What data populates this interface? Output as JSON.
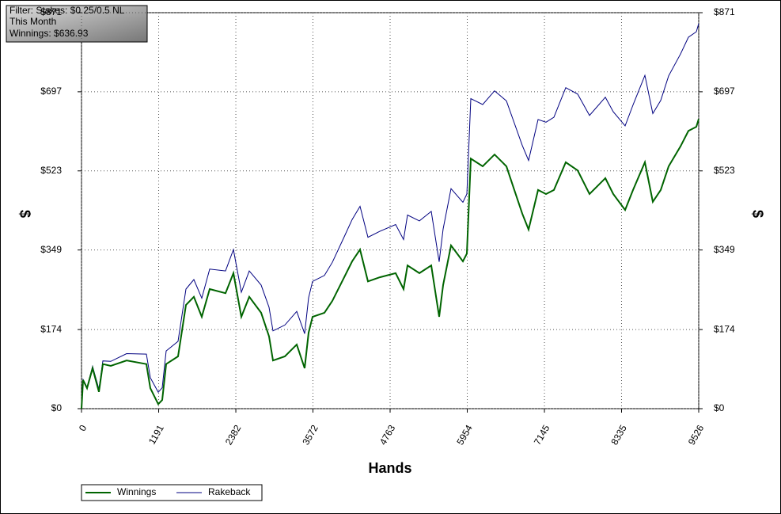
{
  "chart_data": {
    "type": "line",
    "annotations": [
      "Filter: Stakes: $0.25/0.5 NL",
      "This Month",
      "Winnings: $636.93"
    ],
    "xlabel": "Hands",
    "ylabel": "$",
    "y2label": "$",
    "x": [
      0,
      24,
      85,
      171,
      269,
      330,
      452,
      696,
      1001,
      1063,
      1185,
      1246,
      1307,
      1490,
      1612,
      1734,
      1856,
      1978,
      2223,
      2345,
      2467,
      2589,
      2772,
      2894,
      2956,
      3139,
      3322,
      3444,
      3505,
      3566,
      3749,
      3872,
      4055,
      4177,
      4299,
      4421,
      4604,
      4849,
      4971,
      5032,
      5215,
      5398,
      5520,
      5581,
      5703,
      5887,
      5948,
      6009,
      6192,
      6375,
      6558,
      6680,
      6803,
      6900,
      7047,
      7169,
      7291,
      7474,
      7657,
      7841,
      8085,
      8207,
      8390,
      8512,
      8696,
      8818,
      8940,
      9062,
      9245,
      9367,
      9489,
      9526
    ],
    "series": [
      {
        "name": "Winnings",
        "color": "#006400",
        "values": [
          0,
          63,
          45,
          89,
          37,
          98,
          94,
          106,
          98,
          45,
          10,
          19,
          98,
          115,
          228,
          246,
          202,
          263,
          254,
          298,
          202,
          246,
          211,
          159,
          106,
          115,
          141,
          89,
          167,
          202,
          211,
          237,
          289,
          324,
          350,
          280,
          289,
          298,
          263,
          315,
          298,
          315,
          202,
          272,
          359,
          324,
          341,
          550,
          533,
          559,
          533,
          481,
          429,
          394,
          481,
          472,
          481,
          542,
          524,
          472,
          507,
          472,
          437,
          481,
          542,
          455,
          481,
          533,
          577,
          611,
          620,
          637
        ]
      },
      {
        "name": "Rakeback",
        "color": "#000080",
        "values": [
          0,
          64,
          47,
          93,
          43,
          105,
          104,
          121,
          120,
          68,
          36,
          46,
          127,
          148,
          263,
          284,
          243,
          307,
          303,
          350,
          256,
          303,
          272,
          223,
          171,
          184,
          214,
          165,
          244,
          280,
          293,
          322,
          378,
          416,
          445,
          377,
          390,
          405,
          372,
          426,
          413,
          434,
          323,
          395,
          484,
          454,
          472,
          682,
          669,
          699,
          677,
          628,
          579,
          546,
          636,
          630,
          641,
          706,
          692,
          645,
          685,
          653,
          622,
          668,
          733,
          649,
          678,
          732,
          780,
          817,
          829,
          847
        ]
      }
    ],
    "xlim": [
      0,
      9526
    ],
    "xticks": [
      0,
      1191,
      2382,
      3572,
      4763,
      5954,
      7145,
      8335,
      9526
    ],
    "ylim": [
      0,
      871
    ],
    "yticks": [
      {
        "value": 0,
        "label": "$0"
      },
      {
        "value": 174,
        "label": "$174"
      },
      {
        "value": 349,
        "label": "$349"
      },
      {
        "value": 523,
        "label": "$523"
      },
      {
        "value": 697,
        "label": "$697"
      },
      {
        "value": 871,
        "label": "$871"
      }
    ],
    "grid": true,
    "legend": "bottom"
  }
}
